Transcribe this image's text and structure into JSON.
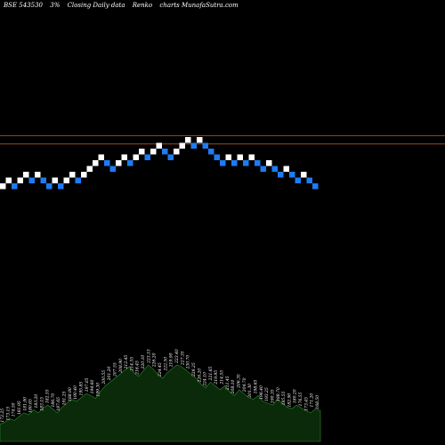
{
  "header": {
    "ticker": "BSE 543530",
    "brick_size": "3%",
    "mode": "Closing Daily data",
    "chart_kind": "Renko",
    "site": "charts MunafaSutra.com"
  },
  "chart_data": {
    "type": "renko",
    "brick_pct": 3,
    "colors": {
      "up_brick": "#ffffff",
      "down_brick": "#1e7bf2",
      "reference_line": "#a0461e",
      "volume_fill": "#0a2a0a",
      "volume_stroke": "#2f8a2f",
      "background": "#000000"
    },
    "reference_lines": [
      {
        "level_index": 8.75
      },
      {
        "level_index": 7.3
      }
    ],
    "bricks": [
      {
        "direction": "up",
        "level": 0
      },
      {
        "direction": "up",
        "level": 1
      },
      {
        "direction": "down",
        "level": 0
      },
      {
        "direction": "up",
        "level": 1
      },
      {
        "direction": "up",
        "level": 2
      },
      {
        "direction": "up",
        "level": 3
      },
      {
        "direction": "down",
        "level": 2
      },
      {
        "direction": "up",
        "level": 3
      },
      {
        "direction": "down",
        "level": 2
      },
      {
        "direction": "down",
        "level": 1
      },
      {
        "direction": "up",
        "level": 2
      },
      {
        "direction": "down",
        "level": 1
      },
      {
        "direction": "up",
        "level": 2
      },
      {
        "direction": "up",
        "level": 3
      },
      {
        "direction": "down",
        "level": 2
      },
      {
        "direction": "up",
        "level": 3
      },
      {
        "direction": "up",
        "level": 4
      },
      {
        "direction": "up",
        "level": 5
      },
      {
        "direction": "up",
        "level": 6
      },
      {
        "direction": "down",
        "level": 5
      },
      {
        "direction": "down",
        "level": 4
      },
      {
        "direction": "up",
        "level": 5
      },
      {
        "direction": "down",
        "level": 4
      },
      {
        "direction": "up",
        "level": 5
      },
      {
        "direction": "up",
        "level": 6
      },
      {
        "direction": "down",
        "level": 5
      },
      {
        "direction": "up",
        "level": 6
      },
      {
        "direction": "up",
        "level": 7
      },
      {
        "direction": "up",
        "level": 8
      },
      {
        "direction": "up",
        "level": 9
      },
      {
        "direction": "down",
        "level": 8
      },
      {
        "direction": "up",
        "level": 9
      },
      {
        "direction": "up",
        "level": 10
      },
      {
        "direction": "down",
        "level": 9
      },
      {
        "direction": "down",
        "level": 8
      },
      {
        "direction": "up",
        "level": 9
      },
      {
        "direction": "up",
        "level": 10
      },
      {
        "direction": "up",
        "level": 11
      },
      {
        "direction": "down",
        "level": 10
      },
      {
        "direction": "up",
        "level": 11
      },
      {
        "direction": "down",
        "level": 10
      },
      {
        "direction": "down",
        "level": 9
      },
      {
        "direction": "up",
        "level": 10
      },
      {
        "direction": "up",
        "level": 11
      },
      {
        "direction": "up",
        "level": 12
      },
      {
        "direction": "down",
        "level": 11
      },
      {
        "direction": "up",
        "level": 12
      },
      {
        "direction": "up",
        "level": 13
      },
      {
        "direction": "down",
        "level": 12
      },
      {
        "direction": "down",
        "level": 11
      },
      {
        "direction": "up",
        "level": 12
      },
      {
        "direction": "down",
        "level": 11
      },
      {
        "direction": "up",
        "level": 12
      },
      {
        "direction": "up",
        "level": 13
      },
      {
        "direction": "down",
        "level": 12
      },
      {
        "direction": "up",
        "level": 13
      },
      {
        "direction": "up",
        "level": 14
      },
      {
        "direction": "down",
        "level": 13
      },
      {
        "direction": "down",
        "level": 12
      },
      {
        "direction": "down",
        "level": 11
      },
      {
        "direction": "down",
        "level": 10
      },
      {
        "direction": "up",
        "level": 11
      },
      {
        "direction": "down",
        "level": 10
      },
      {
        "direction": "up",
        "level": 11
      },
      {
        "direction": "down",
        "level": 10
      },
      {
        "direction": "down",
        "level": 9
      },
      {
        "direction": "down",
        "level": 8
      },
      {
        "direction": "up",
        "level": 9
      },
      {
        "direction": "down",
        "level": 8
      },
      {
        "direction": "down",
        "level": 7
      },
      {
        "direction": "up",
        "level": 8
      },
      {
        "direction": "down",
        "level": 7
      },
      {
        "direction": "down",
        "level": 6
      }
    ],
    "bricks_main": [
      {
        "x": 0,
        "level": 0,
        "direction": "up"
      },
      {
        "x": 1,
        "level": 1,
        "direction": "up"
      },
      {
        "x": 2,
        "level": 0,
        "direction": "down"
      },
      {
        "x": 3,
        "level": 1,
        "direction": "up"
      },
      {
        "x": 4,
        "level": 2,
        "direction": "up"
      },
      {
        "x": 5,
        "level": 1,
        "direction": "down"
      },
      {
        "x": 6,
        "level": 2,
        "direction": "up"
      },
      {
        "x": 7,
        "level": 1,
        "direction": "down"
      },
      {
        "x": 8,
        "level": 0,
        "direction": "down"
      },
      {
        "x": 9,
        "level": 1,
        "direction": "up"
      },
      {
        "x": 10,
        "level": 0,
        "direction": "down"
      },
      {
        "x": 11,
        "level": 1,
        "direction": "up"
      },
      {
        "x": 12,
        "level": 2,
        "direction": "up"
      },
      {
        "x": 13,
        "level": 1,
        "direction": "down"
      },
      {
        "x": 14,
        "level": 2,
        "direction": "up"
      },
      {
        "x": 15,
        "level": 3,
        "direction": "up"
      },
      {
        "x": 16,
        "level": 4,
        "direction": "up"
      },
      {
        "x": 17,
        "level": 5,
        "direction": "up"
      },
      {
        "x": 18,
        "level": 4,
        "direction": "down"
      },
      {
        "x": 19,
        "level": 3,
        "direction": "down"
      },
      {
        "x": 20,
        "level": 4,
        "direction": "up"
      },
      {
        "x": 21,
        "level": 5,
        "direction": "up"
      },
      {
        "x": 22,
        "level": 4,
        "direction": "down"
      },
      {
        "x": 23,
        "level": 5,
        "direction": "up"
      },
      {
        "x": 24,
        "level": 6,
        "direction": "up"
      },
      {
        "x": 25,
        "level": 5,
        "direction": "down"
      },
      {
        "x": 26,
        "level": 6,
        "direction": "up"
      },
      {
        "x": 27,
        "level": 7,
        "direction": "up"
      },
      {
        "x": 28,
        "level": 6,
        "direction": "down"
      },
      {
        "x": 29,
        "level": 5,
        "direction": "down"
      },
      {
        "x": 30,
        "level": 6,
        "direction": "up"
      },
      {
        "x": 31,
        "level": 7,
        "direction": "up"
      },
      {
        "x": 32,
        "level": 8,
        "direction": "up"
      },
      {
        "x": 33,
        "level": 7,
        "direction": "down"
      },
      {
        "x": 34,
        "level": 8,
        "direction": "up"
      },
      {
        "x": 35,
        "level": 7,
        "direction": "down"
      },
      {
        "x": 36,
        "level": 6,
        "direction": "down"
      },
      {
        "x": 37,
        "level": 5,
        "direction": "down"
      },
      {
        "x": 38,
        "level": 4,
        "direction": "down"
      },
      {
        "x": 39,
        "level": 5,
        "direction": "up"
      },
      {
        "x": 40,
        "level": 4,
        "direction": "down"
      },
      {
        "x": 41,
        "level": 5,
        "direction": "up"
      },
      {
        "x": 42,
        "level": 4,
        "direction": "down"
      },
      {
        "x": 43,
        "level": 5,
        "direction": "up"
      },
      {
        "x": 44,
        "level": 4,
        "direction": "down"
      },
      {
        "x": 45,
        "level": 3,
        "direction": "down"
      },
      {
        "x": 46,
        "level": 4,
        "direction": "up"
      },
      {
        "x": 47,
        "level": 3,
        "direction": "down"
      },
      {
        "x": 48,
        "level": 2,
        "direction": "down"
      },
      {
        "x": 49,
        "level": 3,
        "direction": "up"
      },
      {
        "x": 50,
        "level": 2,
        "direction": "down"
      },
      {
        "x": 51,
        "level": 1,
        "direction": "down"
      },
      {
        "x": 52,
        "level": 2,
        "direction": "up"
      },
      {
        "x": 53,
        "level": 1,
        "direction": "down"
      },
      {
        "x": 54,
        "level": 0,
        "direction": "down"
      }
    ],
    "price_labels": [
      "172.25",
      "173.15",
      "174.50",
      "181.95",
      "181.90",
      "180.65",
      "183.20",
      "183.15",
      "182.55",
      "186.70",
      "187.65",
      "191.25",
      "188.90",
      "190.40",
      "195.85",
      "197.05",
      "194.60",
      "199.30",
      "200.55",
      "201.20",
      "207.55",
      "208.90",
      "212.45",
      "214.55",
      "216.45",
      "220.10",
      "223.15",
      "226.20",
      "224.45",
      "222.50",
      "219.90",
      "223.40",
      "227.35",
      "230.70",
      "228.25",
      "226.20",
      "224.10",
      "221.65",
      "219.95",
      "214.55",
      "211.45",
      "208.10",
      "206.35",
      "204.70",
      "201.30",
      "198.65",
      "196.40",
      "193.25",
      "190.35",
      "188.70",
      "185.55",
      "182.90",
      "180.20",
      "176.55",
      "173.45",
      "171.20",
      "168.50"
    ],
    "volume": [
      18,
      20,
      24,
      22,
      26,
      30,
      28,
      33,
      30,
      35,
      38,
      34,
      30,
      36,
      40,
      44,
      42,
      46,
      50,
      48,
      45,
      52,
      58,
      62,
      66,
      70,
      74,
      78,
      72,
      68,
      74,
      80,
      76,
      70,
      66,
      72,
      76,
      80,
      78,
      74,
      70,
      66,
      60,
      56,
      62,
      58,
      54,
      58,
      52,
      48,
      54,
      50,
      46,
      44,
      48,
      42,
      40,
      38,
      44,
      40,
      36,
      34,
      38,
      35,
      32,
      30,
      34,
      32
    ]
  }
}
